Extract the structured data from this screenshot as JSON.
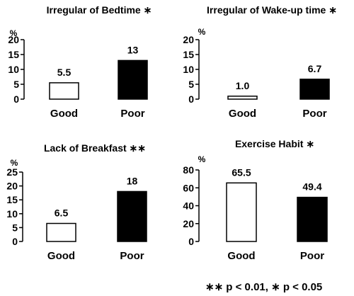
{
  "chart_data": [
    {
      "type": "bar",
      "title": "Irregular of Bedtime ∗",
      "ylabel": "%",
      "categories": [
        "Good",
        "Poor"
      ],
      "values": [
        5.5,
        13
      ],
      "value_labels": [
        "5.5",
        "13"
      ],
      "ylim": [
        0,
        20
      ],
      "yticks": [
        0,
        5,
        10,
        15,
        20
      ],
      "grid": false,
      "bar_colors": [
        "#ffffff",
        "#000000"
      ]
    },
    {
      "type": "bar",
      "title": "Irregular of Wake-up time ∗",
      "ylabel": "%",
      "categories": [
        "Good",
        "Poor"
      ],
      "values": [
        1.0,
        6.7
      ],
      "value_labels": [
        "1.0",
        "6.7"
      ],
      "ylim": [
        0,
        20
      ],
      "yticks": [
        0,
        5,
        10,
        15,
        20
      ],
      "grid": false,
      "bar_colors": [
        "#ffffff",
        "#000000"
      ]
    },
    {
      "type": "bar",
      "title": "Lack of Breakfast ∗∗",
      "ylabel": "%",
      "categories": [
        "Good",
        "Poor"
      ],
      "values": [
        6.5,
        18
      ],
      "value_labels": [
        "6.5",
        "18"
      ],
      "ylim": [
        0,
        25
      ],
      "yticks": [
        0,
        5,
        10,
        15,
        20,
        25
      ],
      "grid": false,
      "bar_colors": [
        "#ffffff",
        "#000000"
      ]
    },
    {
      "type": "bar",
      "title": "Exercise Habit ∗",
      "ylabel": "%",
      "categories": [
        "Good",
        "Poor"
      ],
      "values": [
        65.5,
        49.4
      ],
      "value_labels": [
        "65.5",
        "49.4"
      ],
      "ylim": [
        0,
        80
      ],
      "yticks": [
        0,
        20,
        40,
        60,
        80
      ],
      "grid": false,
      "bar_colors": [
        "#ffffff",
        "#000000"
      ]
    }
  ],
  "footnote": "∗∗ p < 0.01, ∗ p < 0.05"
}
